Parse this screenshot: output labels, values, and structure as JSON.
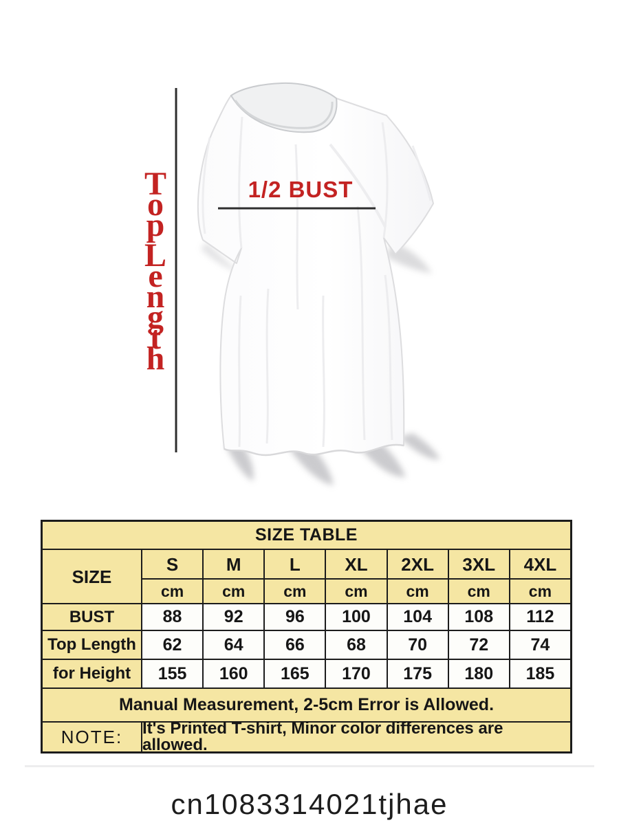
{
  "page": {
    "background": "#ffffff",
    "product_code": "cn1083314021tjhae"
  },
  "diagram": {
    "top_length_label": "Top Length",
    "bust_label": "1/2 BUST",
    "label_color": "#c32322",
    "line_color": "#2e2e2e"
  },
  "size_table": {
    "title": "SIZE TABLE",
    "corner_label": "SIZE",
    "columns": [
      "S",
      "M",
      "L",
      "XL",
      "2XL",
      "3XL",
      "4XL"
    ],
    "unit_row": [
      "cm",
      "cm",
      "cm",
      "cm",
      "cm",
      "cm",
      "cm"
    ],
    "rows": [
      {
        "label": "BUST",
        "values": [
          "88",
          "92",
          "96",
          "100",
          "104",
          "108",
          "112"
        ]
      },
      {
        "label": "Top Length",
        "values": [
          "62",
          "64",
          "66",
          "68",
          "70",
          "72",
          "74"
        ]
      },
      {
        "label": "for Height",
        "values": [
          "155",
          "160",
          "165",
          "170",
          "175",
          "180",
          "185"
        ]
      }
    ],
    "footnote": "Manual Measurement, 2-5cm Error is Allowed.",
    "note_label": "NOTE:",
    "note_text": "It's Printed T-shirt, Minor color differences are allowed.",
    "colors": {
      "header_bg": "#f5e6a3",
      "cell_bg": "#fdfdfa",
      "border": "#1c1c1c"
    }
  }
}
